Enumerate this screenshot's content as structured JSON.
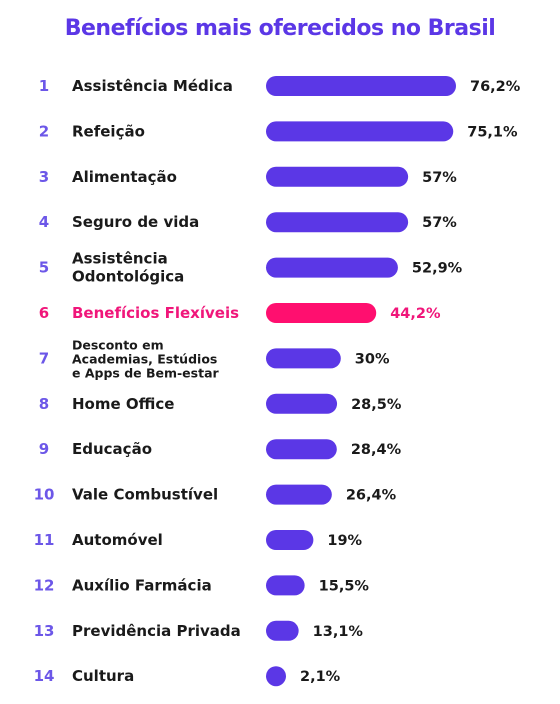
{
  "chart_data": {
    "type": "bar",
    "orientation": "horizontal",
    "title": "Benefícios mais oferecidos no Brasil",
    "categories": [
      "Assistência Médica",
      "Refeição",
      "Alimentação",
      "Seguro de vida",
      "Assistência Odontológica",
      "Benefícios Flexíveis",
      "Desconto em Academias, Estúdios e Apps de Bem-estar",
      "Home Office",
      "Educação",
      "Vale Combustível",
      "Automóvel",
      "Auxílio Farmácia",
      "Previdência Privada",
      "Cultura"
    ],
    "label_lines": [
      [
        "Assistência Médica"
      ],
      [
        "Refeição"
      ],
      [
        "Alimentação"
      ],
      [
        "Seguro de vida"
      ],
      [
        "Assistência",
        "Odontológica"
      ],
      [
        "Benefícios Flexíveis"
      ],
      [
        "Desconto em",
        "Academias, Estúdios",
        "e Apps de Bem-estar"
      ],
      [
        "Home Office"
      ],
      [
        "Educação"
      ],
      [
        "Vale Combustível"
      ],
      [
        "Automóvel"
      ],
      [
        "Auxílio Farmácia"
      ],
      [
        "Previdência Privada"
      ],
      [
        "Cultura"
      ]
    ],
    "ranks": [
      "1",
      "2",
      "3",
      "4",
      "5",
      "6",
      "7",
      "8",
      "9",
      "10",
      "11",
      "12",
      "13",
      "14"
    ],
    "values": [
      76.2,
      75.1,
      57,
      57,
      52.9,
      44.2,
      30,
      28.5,
      28.4,
      26.4,
      19,
      15.5,
      13.1,
      2.1
    ],
    "value_labels": [
      "76,2%",
      "75,1%",
      "57%",
      "57%",
      "52,9%",
      "44,2%",
      "30%",
      "28,5%",
      "28,4%",
      "26,4%",
      "19%",
      "15,5%",
      "13,1%",
      "2,1%"
    ],
    "highlight_index": 5,
    "colors": {
      "bar": "#5b37e6",
      "highlight": "#ff0f6f",
      "title": "#5b37e6",
      "rank": "#6c57e8",
      "highlight_text": "#f0167a"
    },
    "grid": false,
    "legend": "none"
  }
}
